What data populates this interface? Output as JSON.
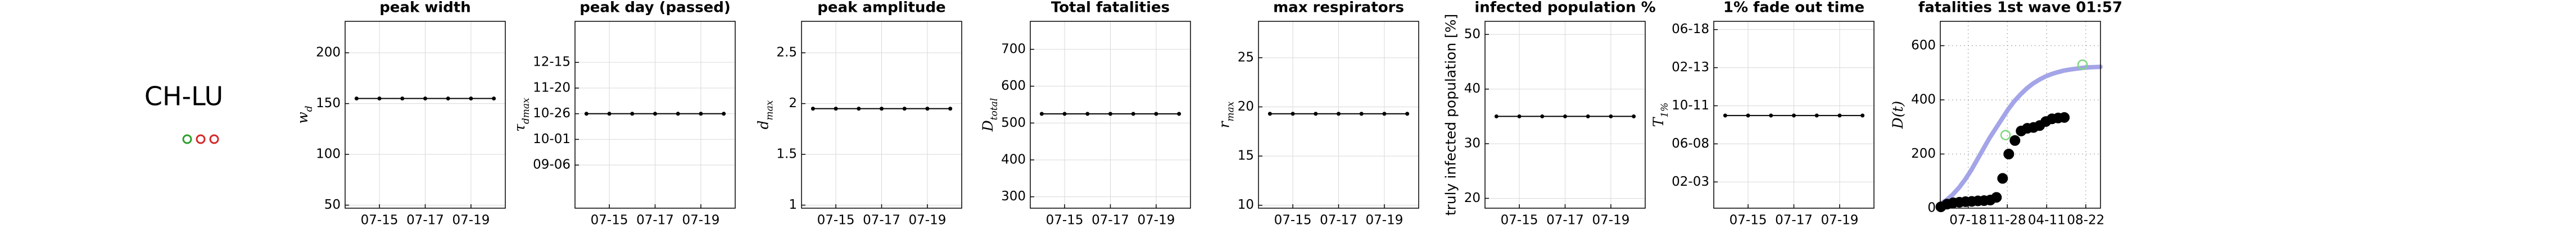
{
  "label": "CH-LU",
  "indicators": [
    "#2ca02c",
    "#d62728",
    "#d62728"
  ],
  "chart_data": [
    {
      "type": "line",
      "title": "peak width",
      "ylabel": "w",
      "ylabel_sub": "d",
      "categories": [
        null,
        "07-15",
        null,
        "07-17",
        null,
        "07-19",
        null
      ],
      "values": [
        155,
        155,
        155,
        155,
        155,
        155,
        155
      ],
      "color": "#000000",
      "ylim": [
        47,
        231
      ],
      "yticks": [
        50,
        100,
        150,
        200
      ],
      "grid": true
    },
    {
      "type": "line",
      "title": "peak day (passed)",
      "ylabel": "τ",
      "ylabel_sub": "dmax",
      "categories": [
        null,
        "07-15",
        null,
        "07-17",
        null,
        "07-19",
        null
      ],
      "values": [
        "10-26",
        "10-26",
        "10-26",
        "10-26",
        "10-26",
        "10-26",
        "10-26"
      ],
      "color": "#000000",
      "ylim": [
        "07-26",
        "01-24"
      ],
      "yticks": [
        "09-06",
        "10-01",
        "10-26",
        "11-20",
        "12-15"
      ],
      "grid": true
    },
    {
      "type": "line",
      "title": "peak amplitude",
      "ylabel": "d",
      "ylabel_sub": "max",
      "categories": [
        null,
        "07-15",
        null,
        "07-17",
        null,
        "07-19",
        null
      ],
      "values": [
        1.95,
        1.95,
        1.95,
        1.95,
        1.95,
        1.95,
        1.95
      ],
      "color": "#000000",
      "ylim": [
        0.97,
        2.81
      ],
      "yticks": [
        1,
        1.5,
        2,
        2.5
      ],
      "grid": true
    },
    {
      "type": "line",
      "title": "Total fatalities",
      "ylabel": "D",
      "ylabel_sub": "total",
      "categories": [
        null,
        "07-15",
        null,
        "07-17",
        null,
        "07-19",
        null
      ],
      "values": [
        525,
        525,
        525,
        525,
        525,
        525,
        525
      ],
      "color": "#000000",
      "ylim": [
        269,
        776
      ],
      "yticks": [
        300,
        400,
        500,
        600,
        700
      ],
      "grid": true
    },
    {
      "type": "line",
      "title": "max respirators",
      "ylabel": "r",
      "ylabel_sub": "max",
      "categories": [
        null,
        "07-15",
        null,
        "07-17",
        null,
        "07-19",
        null
      ],
      "values": [
        19.3,
        19.3,
        19.3,
        19.3,
        19.3,
        19.3,
        19.3
      ],
      "color": "#000000",
      "ylim": [
        9.7,
        28.7
      ],
      "yticks": [
        10,
        15,
        20,
        25
      ],
      "grid": true
    },
    {
      "type": "line",
      "title": "infected population %",
      "ylabel": "truly infected population [%]",
      "categories": [
        null,
        "07-15",
        null,
        "07-17",
        null,
        "07-19",
        null
      ],
      "values": [
        35,
        35,
        35,
        35,
        35,
        35,
        35
      ],
      "color": "#000000",
      "ylim": [
        18.2,
        52.4
      ],
      "yticks": [
        20,
        30,
        40,
        50
      ],
      "grid": true
    },
    {
      "type": "line",
      "title": "1% fade out time",
      "ylabel": "T",
      "ylabel_sub": "1%",
      "categories": [
        null,
        "07-15",
        null,
        "07-17",
        null,
        "07-19",
        null
      ],
      "values": [
        "09-09",
        "09-09",
        "09-09",
        "09-09",
        "09-09",
        "09-09",
        "09-09"
      ],
      "color": "#000000",
      "ylim": [
        "11-09",
        "07-15"
      ],
      "yticks": [
        "02-03",
        "06-08",
        "10-11",
        "02-13",
        "06-18"
      ],
      "grid": true
    },
    {
      "type": "multi",
      "title": "fatalities 1st wave 01:57",
      "ylabel": "D(t)",
      "xlim": [
        "04-14",
        "10-11"
      ],
      "xticks": [
        "07-18",
        "11-28",
        "04-11",
        "08-22"
      ],
      "ylim": [
        0,
        690
      ],
      "yticks": [
        0,
        200,
        400,
        600
      ],
      "grid": "dotted",
      "series": [
        {
          "color": "#9a9ae6",
          "mode": "line",
          "x": [
            "04-14",
            "05-05",
            "05-26",
            "06-16",
            "07-07",
            "07-28",
            "08-18",
            "09-08",
            "09-29",
            "10-20",
            "11-10",
            "12-01",
            "12-22",
            "01-12",
            "02-02",
            "02-23",
            "03-16",
            "04-06",
            "04-27",
            "05-18",
            "06-08",
            "06-29",
            "07-20",
            "08-10",
            "08-31",
            "09-21",
            "10-11"
          ],
          "values": [
            15,
            30,
            50,
            75,
            105,
            140,
            180,
            220,
            260,
            295,
            330,
            365,
            395,
            420,
            442,
            460,
            474,
            486,
            495,
            502,
            508,
            512,
            515,
            518,
            520,
            521,
            522
          ]
        },
        {
          "color": "#000000",
          "mode": "markers",
          "x": [
            "04-16",
            "05-07",
            "05-28",
            "06-18",
            "07-09",
            "07-30",
            "08-20",
            "09-10",
            "10-01",
            "10-22",
            "11-12",
            "12-03",
            "12-24",
            "01-14",
            "02-04",
            "02-25",
            "03-18",
            "04-08",
            "04-29",
            "05-20",
            "06-10"
          ],
          "values": [
            5,
            15,
            20,
            22,
            24,
            25,
            27,
            28,
            30,
            40,
            110,
            200,
            250,
            285,
            295,
            298,
            305,
            320,
            330,
            333,
            335
          ]
        },
        {
          "color": "#7fd67f",
          "mode": "open-markers",
          "x": [
            "11-22",
            "08-11"
          ],
          "values": [
            270,
            530
          ]
        }
      ]
    }
  ]
}
